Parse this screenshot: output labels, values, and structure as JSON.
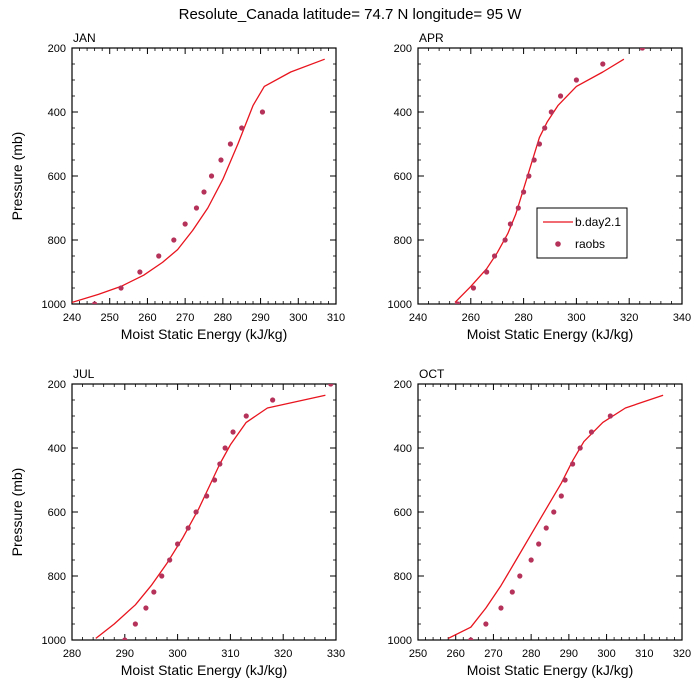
{
  "title": "Resolute_Canada  latitude= 74.7 N longitude= 95 W",
  "colors": {
    "model": "#e8141e",
    "obs": "#b5325a",
    "axis": "#000000"
  },
  "legend": {
    "model_label": "b.day2.1",
    "obs_label": "raobs"
  },
  "chart_data": [
    {
      "type": "line",
      "title": "JAN",
      "xlabel": "Moist Static Energy (kJ/kg)",
      "ylabel": "Pressure (mb)",
      "xlim": [
        240,
        310
      ],
      "ylim": [
        1000,
        200
      ],
      "xticks": [
        240,
        250,
        260,
        270,
        280,
        290,
        300,
        310
      ],
      "yticks": [
        200,
        400,
        600,
        800,
        1000
      ],
      "series": [
        {
          "name": "b.day2.1",
          "kind": "line",
          "x": [
            240,
            247,
            253,
            259,
            264,
            268,
            272,
            276,
            280,
            284,
            288,
            291,
            298,
            307
          ],
          "y": [
            995,
            970,
            945,
            910,
            870,
            830,
            770,
            700,
            610,
            500,
            380,
            320,
            275,
            235
          ]
        },
        {
          "name": "raobs",
          "kind": "scatter",
          "x": [
            246,
            253,
            258,
            263,
            267,
            270,
            273,
            275,
            277,
            279.5,
            282,
            285,
            290.5
          ],
          "y": [
            1000,
            950,
            900,
            850,
            800,
            750,
            700,
            650,
            600,
            550,
            500,
            450,
            400
          ]
        }
      ]
    },
    {
      "type": "line",
      "title": "APR",
      "xlabel": "Moist Static Energy (kJ/kg)",
      "ylabel": "",
      "xlim": [
        240,
        340
      ],
      "ylim": [
        1000,
        200
      ],
      "xticks": [
        240,
        260,
        280,
        300,
        320,
        340
      ],
      "yticks": [
        200,
        400,
        600,
        800,
        1000
      ],
      "legend_position": "right-center",
      "series": [
        {
          "name": "b.day2.1",
          "kind": "line",
          "x": [
            254,
            260,
            266,
            270,
            274,
            277,
            280,
            283,
            286,
            289,
            293,
            300,
            310,
            318
          ],
          "y": [
            995,
            945,
            890,
            840,
            780,
            720,
            640,
            560,
            480,
            430,
            380,
            320,
            275,
            235
          ]
        },
        {
          "name": "raobs",
          "kind": "scatter",
          "x": [
            255,
            261,
            266,
            269,
            273,
            275,
            278,
            280,
            282,
            284,
            286,
            288,
            290.5,
            294,
            300,
            310,
            325
          ],
          "y": [
            1000,
            950,
            900,
            850,
            800,
            750,
            700,
            650,
            600,
            550,
            500,
            450,
            400,
            350,
            300,
            250,
            200
          ]
        }
      ]
    },
    {
      "type": "line",
      "title": "JUL",
      "xlabel": "Moist Static Energy (kJ/kg)",
      "ylabel": "Pressure (mb)",
      "xlim": [
        280,
        330
      ],
      "ylim": [
        1000,
        200
      ],
      "xticks": [
        280,
        290,
        300,
        310,
        320,
        330
      ],
      "yticks": [
        200,
        400,
        600,
        800,
        1000
      ],
      "series": [
        {
          "name": "b.day2.1",
          "kind": "line",
          "x": [
            284.5,
            288,
            292,
            295,
            298,
            301,
            304,
            306,
            308,
            310,
            313,
            317,
            328
          ],
          "y": [
            995,
            950,
            890,
            830,
            760,
            680,
            590,
            520,
            450,
            390,
            320,
            275,
            235
          ]
        },
        {
          "name": "raobs",
          "kind": "scatter",
          "x": [
            290,
            292,
            294,
            295.5,
            297,
            298.5,
            300,
            302,
            303.5,
            305.5,
            307,
            308,
            309,
            310.5,
            313,
            318,
            329
          ],
          "y": [
            1000,
            950,
            900,
            850,
            800,
            750,
            700,
            650,
            600,
            550,
            500,
            450,
            400,
            350,
            300,
            250,
            200
          ]
        }
      ]
    },
    {
      "type": "line",
      "title": "OCT",
      "xlabel": "Moist Static Energy (kJ/kg)",
      "ylabel": "",
      "xlim": [
        250,
        320
      ],
      "ylim": [
        1000,
        200
      ],
      "xticks": [
        250,
        260,
        270,
        280,
        290,
        300,
        310,
        320
      ],
      "yticks": [
        200,
        400,
        600,
        800,
        1000
      ],
      "series": [
        {
          "name": "b.day2.1",
          "kind": "line",
          "x": [
            258,
            264,
            268,
            272,
            276,
            280,
            284,
            288,
            291,
            294,
            299,
            305,
            315
          ],
          "y": [
            995,
            960,
            900,
            830,
            750,
            670,
            590,
            510,
            440,
            380,
            320,
            275,
            235
          ]
        },
        {
          "name": "raobs",
          "kind": "scatter",
          "x": [
            264,
            268,
            272,
            275,
            277,
            280,
            282,
            284,
            286,
            288,
            289,
            291,
            293,
            296,
            301
          ],
          "y": [
            1000,
            950,
            900,
            850,
            800,
            750,
            700,
            650,
            600,
            550,
            500,
            450,
            400,
            350,
            300
          ]
        }
      ]
    }
  ]
}
